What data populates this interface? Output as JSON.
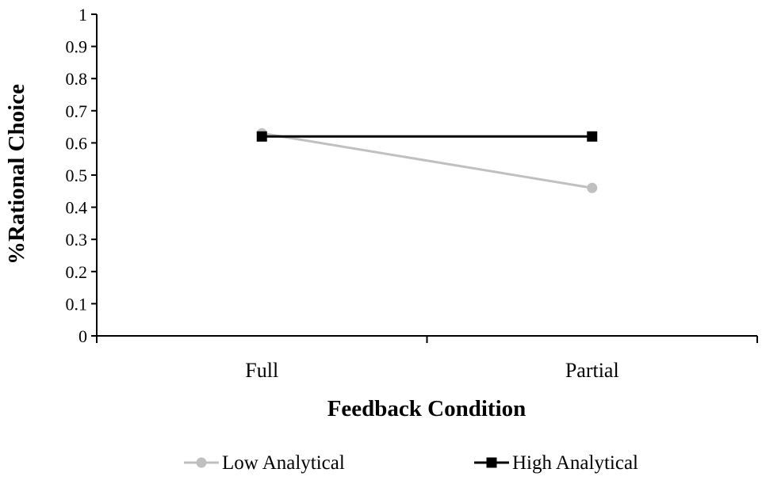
{
  "chart_data": {
    "type": "line",
    "title": "",
    "xlabel": "Feedback Condition",
    "ylabel": "%Rational Choice",
    "categories": [
      "Full",
      "Partial"
    ],
    "ylim": [
      0,
      1
    ],
    "yticks": [
      0,
      0.1,
      0.2,
      0.3,
      0.4,
      0.5,
      0.6,
      0.7,
      0.8,
      0.9,
      1
    ],
    "ytick_labels": [
      "0",
      "0.1",
      "0.2",
      "0.3",
      "0.4",
      "0.5",
      "0.6",
      "0.7",
      "0.8",
      "0.9",
      "1"
    ],
    "grid": false,
    "legend_position": "bottom",
    "series": [
      {
        "name": "Low Analytical",
        "values": [
          0.63,
          0.46
        ],
        "color": "#c0c0c0",
        "marker": "circle"
      },
      {
        "name": "High Analytical",
        "values": [
          0.62,
          0.62
        ],
        "color": "#000000",
        "marker": "square"
      }
    ]
  }
}
